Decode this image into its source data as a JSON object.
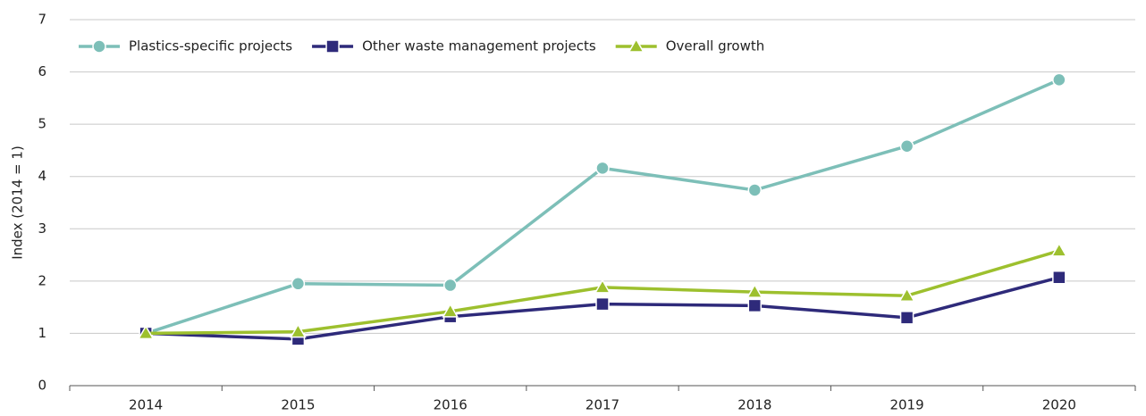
{
  "chart_data": {
    "type": "line",
    "y_label": "Index (2014 = 1)",
    "categories": [
      "2014",
      "2015",
      "2016",
      "2017",
      "2018",
      "2019",
      "2020"
    ],
    "series": [
      {
        "name": "Plastics-specific projects",
        "color": "#7dbfb8",
        "marker": "circle",
        "values": [
          1.0,
          1.95,
          1.92,
          4.16,
          3.74,
          4.58,
          5.85
        ]
      },
      {
        "name": "Other waste management projects",
        "color": "#2e2a7a",
        "marker": "square",
        "values": [
          1.0,
          0.89,
          1.32,
          1.56,
          1.53,
          1.3,
          2.07
        ]
      },
      {
        "name": "Overall growth",
        "color": "#9dc02e",
        "marker": "triangle",
        "values": [
          1.0,
          1.03,
          1.42,
          1.88,
          1.79,
          1.72,
          2.58
        ]
      }
    ],
    "ylim": [
      0,
      7
    ],
    "yticks": [
      0,
      1,
      2,
      3,
      4,
      5,
      6,
      7
    ],
    "grid": true,
    "legend": "top-left"
  }
}
